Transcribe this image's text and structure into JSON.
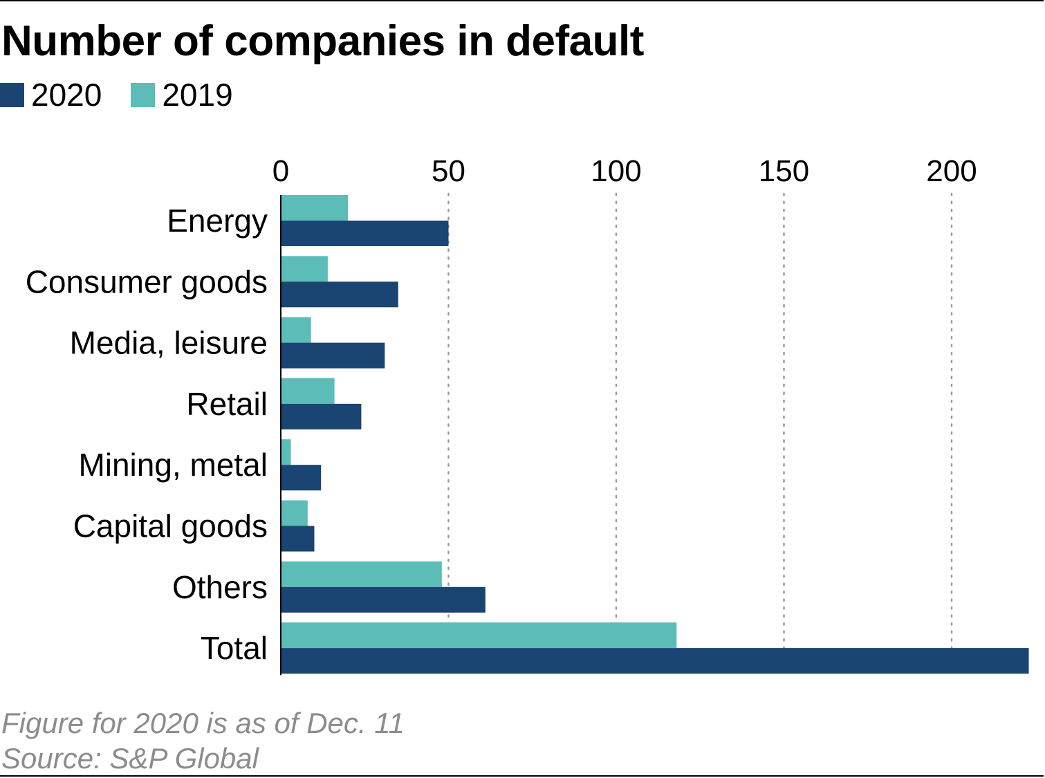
{
  "chart_data": {
    "type": "bar",
    "orientation": "horizontal",
    "title": "Number of companies in default",
    "categories": [
      "Energy",
      "Consumer goods",
      "Media, leisure",
      "Retail",
      "Mining, metal",
      "Capital goods",
      "Others",
      "Total"
    ],
    "series": [
      {
        "name": "2019",
        "color": "#5bbcb8",
        "values": [
          20,
          14,
          9,
          16,
          3,
          8,
          48,
          118
        ]
      },
      {
        "name": "2020",
        "color": "#1a4471",
        "values": [
          50,
          35,
          31,
          24,
          12,
          10,
          61,
          223
        ]
      }
    ],
    "xlim": [
      0,
      223
    ],
    "xticks": [
      0,
      50,
      100,
      150,
      200
    ],
    "x_axis_position": "top",
    "grid": "vertical dotted",
    "legend_placement": "top-left",
    "notes": [
      "Figure for 2020 is as of Dec. 11",
      "Source: S&P Global"
    ]
  }
}
